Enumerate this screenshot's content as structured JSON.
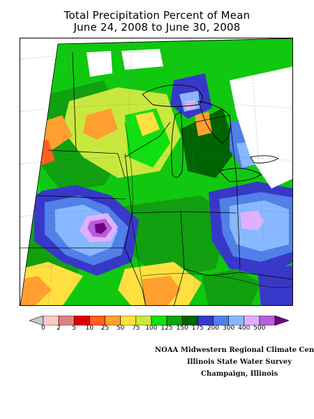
{
  "title": {
    "line1": "Total Precipitation Percent of Mean",
    "line2": "June 24, 2008 to June 30, 2008"
  },
  "legend": {
    "ticks": [
      "0",
      "2",
      "5",
      "10",
      "25",
      "50",
      "75",
      "100",
      "125",
      "150",
      "175",
      "200",
      "300",
      "400",
      "500"
    ],
    "colors": [
      "#c8c8c8",
      "#ffc8c8",
      "#e08080",
      "#e00000",
      "#ff6020",
      "#ffa030",
      "#ffe040",
      "#c8e840",
      "#10e010",
      "#10a010",
      "#006400",
      "#3838c8",
      "#5080e8",
      "#88b8ff",
      "#e0b0ff",
      "#b860d8",
      "#700080"
    ]
  },
  "credits": {
    "line1": "NOAA Midwestern Regional Climate Cent",
    "line2": "Illinois State Water Survey",
    "line3": "Champaign, Illinois"
  },
  "map": {
    "region": "Midwest United States",
    "layer": "precipitation-percent-of-mean"
  }
}
